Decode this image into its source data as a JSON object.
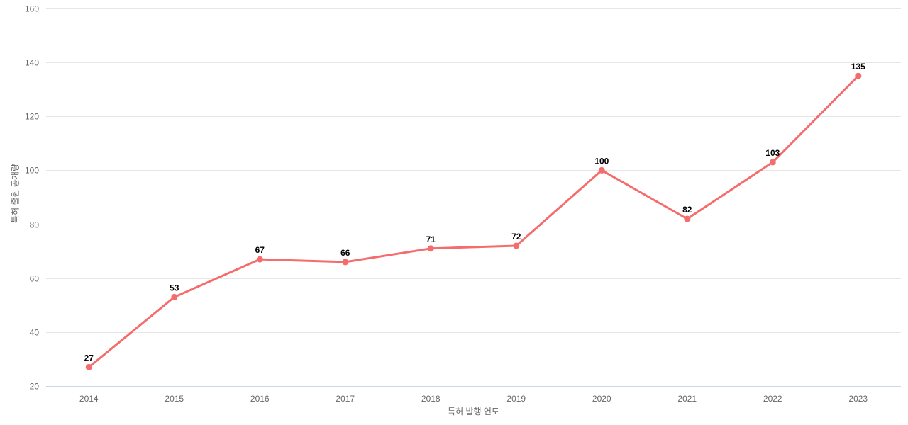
{
  "chart_data": {
    "type": "line",
    "title": "",
    "categories": [
      "2014",
      "2015",
      "2016",
      "2017",
      "2018",
      "2019",
      "2020",
      "2021",
      "2022",
      "2023"
    ],
    "series": [
      {
        "name": "특허 출원 공개량",
        "values": [
          27,
          53,
          67,
          66,
          71,
          72,
          100,
          82,
          103,
          135
        ]
      }
    ],
    "data_labels": [
      "27",
      "53",
      "67",
      "66",
      "71",
      "72",
      "100",
      "82",
      "103",
      "135"
    ],
    "xlabel": "특허 발행 연도",
    "ylabel": "특허 출원 공개량",
    "ylim": [
      20,
      160
    ],
    "ytick_step": 20,
    "yticks": [
      "20",
      "40",
      "60",
      "80",
      "100",
      "120",
      "140",
      "160"
    ],
    "grid": "horizontal",
    "legend": "none",
    "colors": {
      "line": "#f56c6c",
      "marker": "#f56c6c",
      "grid": "#e6e6e6",
      "axis_line": "#ccd6eb",
      "tick_label": "#666666",
      "axis_title": "#666666",
      "data_label": "#000000",
      "background": "#ffffff"
    }
  }
}
